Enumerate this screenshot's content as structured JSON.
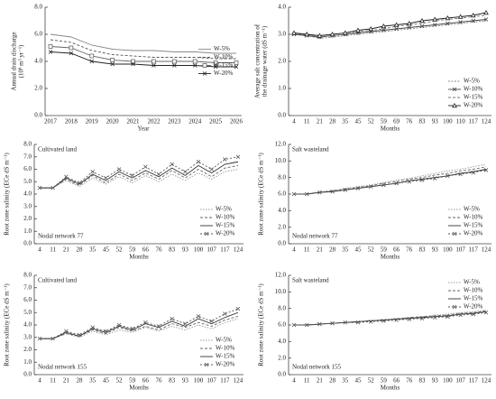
{
  "chart_data": [
    {
      "type": "line",
      "xlabel": "Year",
      "ylabel": [
        "Annual drain discharge",
        "(10⁸ m³ yr⁻¹)"
      ],
      "legend": "right",
      "categories": [
        "2017",
        "2018",
        "2019",
        "2020",
        "2021",
        "2022",
        "2023",
        "2024",
        "2025",
        "2026"
      ],
      "ylim": [
        0,
        8
      ],
      "yticks": [
        {
          "value": 0,
          "label": "0.0"
        },
        {
          "value": 2,
          "label": "2.0"
        },
        {
          "value": 4,
          "label": "4.0"
        },
        {
          "value": 6,
          "label": "6.0"
        },
        {
          "value": 8,
          "label": "8.0"
        }
      ],
      "series": [
        {
          "name": "W-5%",
          "color": "#888888",
          "dash": "none",
          "marker": "none",
          "values": [
            6.0,
            5.8,
            5.2,
            4.9,
            4.8,
            4.8,
            4.7,
            4.7,
            4.6,
            4.6
          ]
        },
        {
          "name": "W-10%",
          "color": "#555555",
          "dash": "3 2",
          "marker": "none",
          "values": [
            5.6,
            5.4,
            4.8,
            4.5,
            4.4,
            4.3,
            4.3,
            4.3,
            4.2,
            4.2
          ]
        },
        {
          "name": "W-15%",
          "color": "#666666",
          "dash": "none",
          "marker": "square",
          "values": [
            5.1,
            5.0,
            4.4,
            4.1,
            4.0,
            4.0,
            4.0,
            4.0,
            3.9,
            3.9
          ]
        },
        {
          "name": "W-20%",
          "color": "#222222",
          "dash": "none",
          "marker": "x",
          "values": [
            4.7,
            4.6,
            4.0,
            3.8,
            3.8,
            3.7,
            3.7,
            3.7,
            3.6,
            3.6
          ]
        }
      ]
    },
    {
      "type": "line",
      "xlabel": "Months",
      "ylabel": [
        "Average salt concentration of",
        "the drainage water (dS m⁻¹)"
      ],
      "legend": "lower right",
      "categories": [
        "4",
        "11",
        "21",
        "28",
        "35",
        "45",
        "52",
        "59",
        "69",
        "76",
        "83",
        "93",
        "100",
        "110",
        "117",
        "124"
      ],
      "ylim": [
        0,
        4
      ],
      "yticks": [
        {
          "value": 0,
          "label": "0.0"
        },
        {
          "value": 1,
          "label": "1.0"
        },
        {
          "value": 2,
          "label": "2.0"
        },
        {
          "value": 3,
          "label": "3.0"
        },
        {
          "value": 4,
          "label": "4.0"
        }
      ],
      "series": [
        {
          "name": "W-5%",
          "color": "#888888",
          "dash": "2 1.5",
          "marker": "none",
          "values": [
            3.0,
            2.95,
            2.85,
            2.9,
            2.95,
            3.0,
            3.05,
            3.1,
            3.15,
            3.2,
            3.25,
            3.3,
            3.35,
            3.4,
            3.45,
            3.5
          ]
        },
        {
          "name": "W-10%",
          "color": "#444444",
          "dash": "none",
          "marker": "x",
          "values": [
            3.0,
            2.95,
            2.9,
            2.95,
            3.0,
            3.05,
            3.1,
            3.15,
            3.2,
            3.25,
            3.3,
            3.35,
            3.4,
            3.45,
            3.5,
            3.55
          ]
        },
        {
          "name": "W-15%",
          "color": "#777777",
          "dash": "3 2",
          "marker": "none",
          "values": [
            3.0,
            3.0,
            2.9,
            2.95,
            3.0,
            3.1,
            3.15,
            3.2,
            3.3,
            3.35,
            3.4,
            3.5,
            3.55,
            3.6,
            3.65,
            3.7
          ]
        },
        {
          "name": "W-20%",
          "color": "#222222",
          "dash": "none",
          "marker": "triangle",
          "values": [
            3.05,
            3.0,
            2.95,
            3.0,
            3.05,
            3.15,
            3.2,
            3.3,
            3.35,
            3.4,
            3.5,
            3.55,
            3.6,
            3.65,
            3.7,
            3.8
          ]
        }
      ]
    },
    {
      "type": "line",
      "title": "Cultivated land",
      "annotation": "Nodal network 77",
      "xlabel": "Months",
      "ylabel": [
        "Root zone salinity (ECe dS m⁻¹)"
      ],
      "legend": "lower right",
      "categories": [
        "4",
        "11",
        "21",
        "28",
        "35",
        "45",
        "52",
        "59",
        "66",
        "76",
        "83",
        "93",
        "100",
        "107",
        "117",
        "124"
      ],
      "ylim": [
        0,
        8
      ],
      "yticks": [
        {
          "value": 0,
          "label": "0.0"
        },
        {
          "value": 1,
          "label": "1.0"
        },
        {
          "value": 2,
          "label": "2.0"
        },
        {
          "value": 3,
          "label": "3.0"
        },
        {
          "value": 4,
          "label": "4.0"
        },
        {
          "value": 5,
          "label": "5.0"
        },
        {
          "value": 6,
          "label": "6.0"
        },
        {
          "value": 7,
          "label": "7.0"
        },
        {
          "value": 8,
          "label": "8.0"
        }
      ],
      "series": [
        {
          "name": "W-5%",
          "color": "#999999",
          "dash": "1.5 1.5",
          "marker": "none",
          "values": [
            4.5,
            4.5,
            5.1,
            4.6,
            5.3,
            4.8,
            5.4,
            4.9,
            5.5,
            5.0,
            5.6,
            5.1,
            5.7,
            5.2,
            5.8,
            6.0
          ]
        },
        {
          "name": "W-10%",
          "color": "#666666",
          "dash": "3 2",
          "marker": "none",
          "values": [
            4.5,
            4.5,
            5.2,
            4.7,
            5.5,
            4.9,
            5.6,
            5.1,
            5.7,
            5.2,
            5.9,
            5.3,
            6.0,
            5.4,
            6.1,
            6.3
          ]
        },
        {
          "name": "W-15%",
          "color": "#333333",
          "dash": "none",
          "marker": "none",
          "values": [
            4.5,
            4.5,
            5.3,
            4.8,
            5.6,
            5.1,
            5.8,
            5.3,
            5.9,
            5.4,
            6.1,
            5.5,
            6.3,
            5.7,
            6.4,
            6.6
          ]
        },
        {
          "name": "W-20%",
          "color": "#555555",
          "dash": "2 2",
          "marker": "x",
          "values": [
            4.5,
            4.5,
            5.4,
            4.9,
            5.8,
            5.3,
            6.0,
            5.5,
            6.2,
            5.6,
            6.4,
            5.8,
            6.6,
            6.0,
            6.8,
            7.0
          ]
        }
      ]
    },
    {
      "type": "line",
      "title": "Salt wasteland",
      "annotation": "Nodal network 77",
      "xlabel": "Months",
      "ylabel": [
        "Root zone salinity (ECe dS m⁻¹)"
      ],
      "legend": "lower right",
      "categories": [
        "4",
        "11",
        "21",
        "28",
        "35",
        "45",
        "52",
        "59",
        "66",
        "76",
        "83",
        "93",
        "100",
        "107",
        "117",
        "124"
      ],
      "ylim": [
        0,
        12
      ],
      "yticks": [
        {
          "value": 0,
          "label": "0.0"
        },
        {
          "value": 2,
          "label": "2.0"
        },
        {
          "value": 4,
          "label": "4.0"
        },
        {
          "value": 6,
          "label": "6.0"
        },
        {
          "value": 8,
          "label": "8.0"
        },
        {
          "value": 10,
          "label": "10.0"
        },
        {
          "value": 12,
          "label": "12.0"
        }
      ],
      "series": [
        {
          "name": "W-5%",
          "color": "#999999",
          "dash": "1.5 1.5",
          "marker": "none",
          "values": [
            6.0,
            6.0,
            6.3,
            6.4,
            6.7,
            6.9,
            7.1,
            7.4,
            7.7,
            7.9,
            8.2,
            8.5,
            8.8,
            9.0,
            9.3,
            9.6
          ]
        },
        {
          "name": "W-10%",
          "color": "#666666",
          "dash": "3 2",
          "marker": "none",
          "values": [
            6.0,
            6.0,
            6.2,
            6.4,
            6.6,
            6.8,
            7.0,
            7.3,
            7.5,
            7.8,
            8.0,
            8.3,
            8.5,
            8.8,
            9.0,
            9.3
          ]
        },
        {
          "name": "W-15%",
          "color": "#333333",
          "dash": "none",
          "marker": "none",
          "values": [
            6.0,
            6.0,
            6.2,
            6.3,
            6.5,
            6.7,
            6.9,
            7.1,
            7.3,
            7.6,
            7.8,
            8.0,
            8.2,
            8.5,
            8.7,
            9.0
          ]
        },
        {
          "name": "W-20%",
          "color": "#555555",
          "dash": "2 2",
          "marker": "x",
          "values": [
            6.0,
            6.0,
            6.2,
            6.3,
            6.5,
            6.7,
            6.9,
            7.1,
            7.3,
            7.5,
            7.7,
            7.9,
            8.2,
            8.4,
            8.6,
            8.9
          ]
        }
      ]
    },
    {
      "type": "line",
      "title": "Cultivated land",
      "annotation": "Nodal network 155",
      "xlabel": "Months",
      "ylabel": [
        "Root zone salinity (ECe dS m⁻¹)"
      ],
      "legend": "lower right",
      "categories": [
        "4",
        "11",
        "21",
        "28",
        "35",
        "45",
        "52",
        "59",
        "66",
        "76",
        "83",
        "93",
        "100",
        "107",
        "117",
        "124"
      ],
      "ylim": [
        0,
        8
      ],
      "yticks": [
        {
          "value": 0,
          "label": "0.0"
        },
        {
          "value": 1,
          "label": "1.0"
        },
        {
          "value": 2,
          "label": "2.0"
        },
        {
          "value": 3,
          "label": "3.0"
        },
        {
          "value": 4,
          "label": "4.0"
        },
        {
          "value": 5,
          "label": "5.0"
        },
        {
          "value": 6,
          "label": "6.0"
        },
        {
          "value": 7,
          "label": "7.0"
        },
        {
          "value": 8,
          "label": "8.0"
        }
      ],
      "series": [
        {
          "name": "W-5%",
          "color": "#999999",
          "dash": "1.5 1.5",
          "marker": "none",
          "values": [
            2.9,
            2.9,
            3.3,
            3.0,
            3.5,
            3.2,
            3.6,
            3.4,
            3.8,
            3.5,
            3.9,
            3.6,
            4.0,
            3.7,
            4.2,
            4.5
          ]
        },
        {
          "name": "W-10%",
          "color": "#666666",
          "dash": "3 2",
          "marker": "none",
          "values": [
            2.9,
            2.9,
            3.3,
            3.1,
            3.6,
            3.3,
            3.8,
            3.5,
            3.9,
            3.6,
            4.1,
            3.8,
            4.2,
            3.9,
            4.4,
            4.7
          ]
        },
        {
          "name": "W-15%",
          "color": "#333333",
          "dash": "none",
          "marker": "none",
          "values": [
            2.9,
            2.9,
            3.4,
            3.1,
            3.7,
            3.4,
            3.9,
            3.6,
            4.1,
            3.8,
            4.3,
            3.9,
            4.5,
            4.1,
            4.6,
            5.0
          ]
        },
        {
          "name": "W-20%",
          "color": "#555555",
          "dash": "2 2",
          "marker": "x",
          "values": [
            2.9,
            2.9,
            3.5,
            3.2,
            3.8,
            3.5,
            4.0,
            3.7,
            4.2,
            3.9,
            4.5,
            4.1,
            4.7,
            4.3,
            4.9,
            5.3
          ]
        }
      ]
    },
    {
      "type": "line",
      "title": "Salt wasteland",
      "annotation": "Nodal network 155",
      "xlabel": "Months",
      "ylabel": [
        "Root zone salinity (ECe dS m⁻¹)"
      ],
      "legend": "upper right",
      "categories": [
        "4",
        "11",
        "21",
        "28",
        "35",
        "45",
        "52",
        "59",
        "66",
        "76",
        "83",
        "93",
        "100",
        "107",
        "117",
        "124"
      ],
      "ylim": [
        0,
        12
      ],
      "yticks": [
        {
          "value": 0,
          "label": "0.0"
        },
        {
          "value": 2,
          "label": "2.0"
        },
        {
          "value": 4,
          "label": "4.0"
        },
        {
          "value": 6,
          "label": "6.0"
        },
        {
          "value": 8,
          "label": "8.0"
        },
        {
          "value": 10,
          "label": "10.0"
        },
        {
          "value": 12,
          "label": "12.0"
        }
      ],
      "series": [
        {
          "name": "W-5%",
          "color": "#999999",
          "dash": "1.5 1.5",
          "marker": "none",
          "values": [
            6.0,
            6.0,
            6.1,
            6.2,
            6.3,
            6.4,
            6.5,
            6.6,
            6.8,
            6.9,
            7.0,
            7.2,
            7.3,
            7.5,
            7.6,
            7.8
          ]
        },
        {
          "name": "W-10%",
          "color": "#666666",
          "dash": "3 2",
          "marker": "none",
          "values": [
            6.0,
            6.0,
            6.1,
            6.2,
            6.3,
            6.4,
            6.5,
            6.6,
            6.7,
            6.9,
            7.0,
            7.1,
            7.2,
            7.4,
            7.5,
            7.7
          ]
        },
        {
          "name": "W-15%",
          "color": "#333333",
          "dash": "none",
          "marker": "none",
          "values": [
            6.0,
            6.0,
            6.1,
            6.2,
            6.3,
            6.4,
            6.5,
            6.6,
            6.7,
            6.8,
            6.9,
            7.0,
            7.1,
            7.3,
            7.4,
            7.6
          ]
        },
        {
          "name": "W-20%",
          "color": "#555555",
          "dash": "2 2",
          "marker": "x",
          "values": [
            6.0,
            6.0,
            6.1,
            6.2,
            6.3,
            6.3,
            6.4,
            6.5,
            6.6,
            6.7,
            6.8,
            6.9,
            7.0,
            7.2,
            7.3,
            7.5
          ]
        }
      ]
    }
  ]
}
